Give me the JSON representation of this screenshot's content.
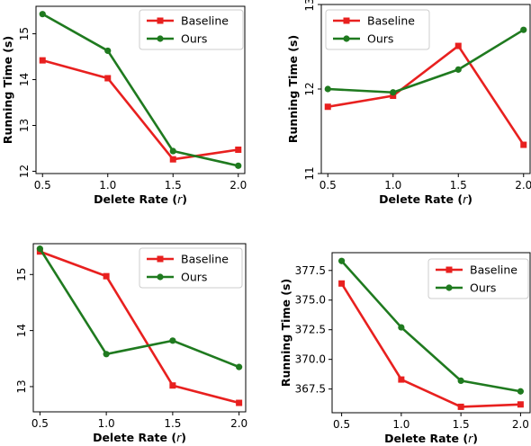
{
  "colors": {
    "baseline": "#e8201f",
    "ours": "#1f7a1f"
  },
  "chart_data": [
    {
      "type": "line",
      "x": [
        0.5,
        1.0,
        1.5,
        2.0
      ],
      "x_ticks": [
        "0.5",
        "1.0",
        "1.5",
        "2.0"
      ],
      "xlim": [
        0.45,
        2.05
      ],
      "ylim": [
        11.95,
        15.6
      ],
      "y_ticks": [
        {
          "v": 12,
          "label": "12"
        },
        {
          "v": 13,
          "label": "13"
        },
        {
          "v": 14,
          "label": "14"
        },
        {
          "v": 15,
          "label": "15"
        }
      ],
      "y_tick_rotated": true,
      "xlabel_pre": "Delete Rate (",
      "xlabel_var": "r",
      "xlabel_post": ")",
      "ylabel": "Running Time (s)",
      "legend": "top-right",
      "grid": false,
      "series": [
        {
          "name": "Baseline",
          "color": "#e8201f",
          "marker": "square",
          "values": [
            14.42,
            14.03,
            12.26,
            12.47
          ]
        },
        {
          "name": "Ours",
          "color": "#1f7a1f",
          "marker": "circle",
          "values": [
            15.43,
            14.63,
            12.44,
            12.12
          ]
        }
      ]
    },
    {
      "type": "line",
      "x": [
        0.5,
        1.0,
        1.5,
        2.0
      ],
      "x_ticks": [
        "0.5",
        "1.0",
        "1.5",
        "2.0"
      ],
      "xlim": [
        0.45,
        2.05
      ],
      "ylim": [
        11.0,
        13.0
      ],
      "y_ticks": [
        {
          "v": 11,
          "label": "11"
        },
        {
          "v": 12,
          "label": "12"
        },
        {
          "v": 13,
          "label": "13"
        }
      ],
      "y_tick_rotated": true,
      "xlabel_pre": "Delete Rate (",
      "xlabel_var": "r",
      "xlabel_post": ")",
      "ylabel": "Running Time (s)",
      "legend": "top-left",
      "grid": false,
      "series": [
        {
          "name": "Baseline",
          "color": "#e8201f",
          "marker": "square",
          "values": [
            11.79,
            11.92,
            12.51,
            11.34
          ]
        },
        {
          "name": "Ours",
          "color": "#1f7a1f",
          "marker": "circle",
          "values": [
            12.0,
            11.96,
            12.23,
            12.7
          ]
        }
      ]
    },
    {
      "type": "line",
      "x": [
        0.5,
        1.0,
        1.5,
        2.0
      ],
      "x_ticks": [
        "0.5",
        "1.0",
        "1.5",
        "2.0"
      ],
      "xlim": [
        0.45,
        2.05
      ],
      "ylim": [
        12.55,
        15.55
      ],
      "y_ticks": [
        {
          "v": 13,
          "label": "13"
        },
        {
          "v": 14,
          "label": "14"
        },
        {
          "v": 15,
          "label": "15"
        }
      ],
      "y_tick_rotated": true,
      "xlabel_pre": "Delete Rate (",
      "xlabel_var": "r",
      "xlabel_post": ")",
      "ylabel": "",
      "legend": "top-right",
      "grid": false,
      "series": [
        {
          "name": "Baseline",
          "color": "#e8201f",
          "marker": "square",
          "values": [
            15.41,
            14.97,
            13.02,
            12.71
          ]
        },
        {
          "name": "Ours",
          "color": "#1f7a1f",
          "marker": "circle",
          "values": [
            15.46,
            13.58,
            13.82,
            13.35
          ]
        }
      ]
    },
    {
      "type": "line",
      "x": [
        0.5,
        1.0,
        1.5,
        2.0
      ],
      "x_ticks": [
        "0.5",
        "1.0",
        "1.5",
        "2.0"
      ],
      "xlim": [
        0.42,
        2.08
      ],
      "ylim": [
        365.5,
        379.0
      ],
      "y_ticks": [
        {
          "v": 367.5,
          "label": "367.5"
        },
        {
          "v": 370.0,
          "label": "370.0"
        },
        {
          "v": 372.5,
          "label": "372.5"
        },
        {
          "v": 375.0,
          "label": "375.0"
        },
        {
          "v": 377.5,
          "label": "377.5"
        }
      ],
      "y_tick_rotated": false,
      "xlabel_pre": "Delete Rate (",
      "xlabel_var": "r",
      "xlabel_post": ")",
      "ylabel": "Running Time (s)",
      "legend": "top-right",
      "grid": false,
      "series": [
        {
          "name": "Baseline",
          "color": "#e8201f",
          "marker": "square",
          "values": [
            376.4,
            368.3,
            366.0,
            366.2
          ]
        },
        {
          "name": "Ours",
          "color": "#1f7a1f",
          "marker": "circle",
          "values": [
            378.3,
            372.7,
            368.2,
            367.3
          ]
        }
      ]
    }
  ]
}
